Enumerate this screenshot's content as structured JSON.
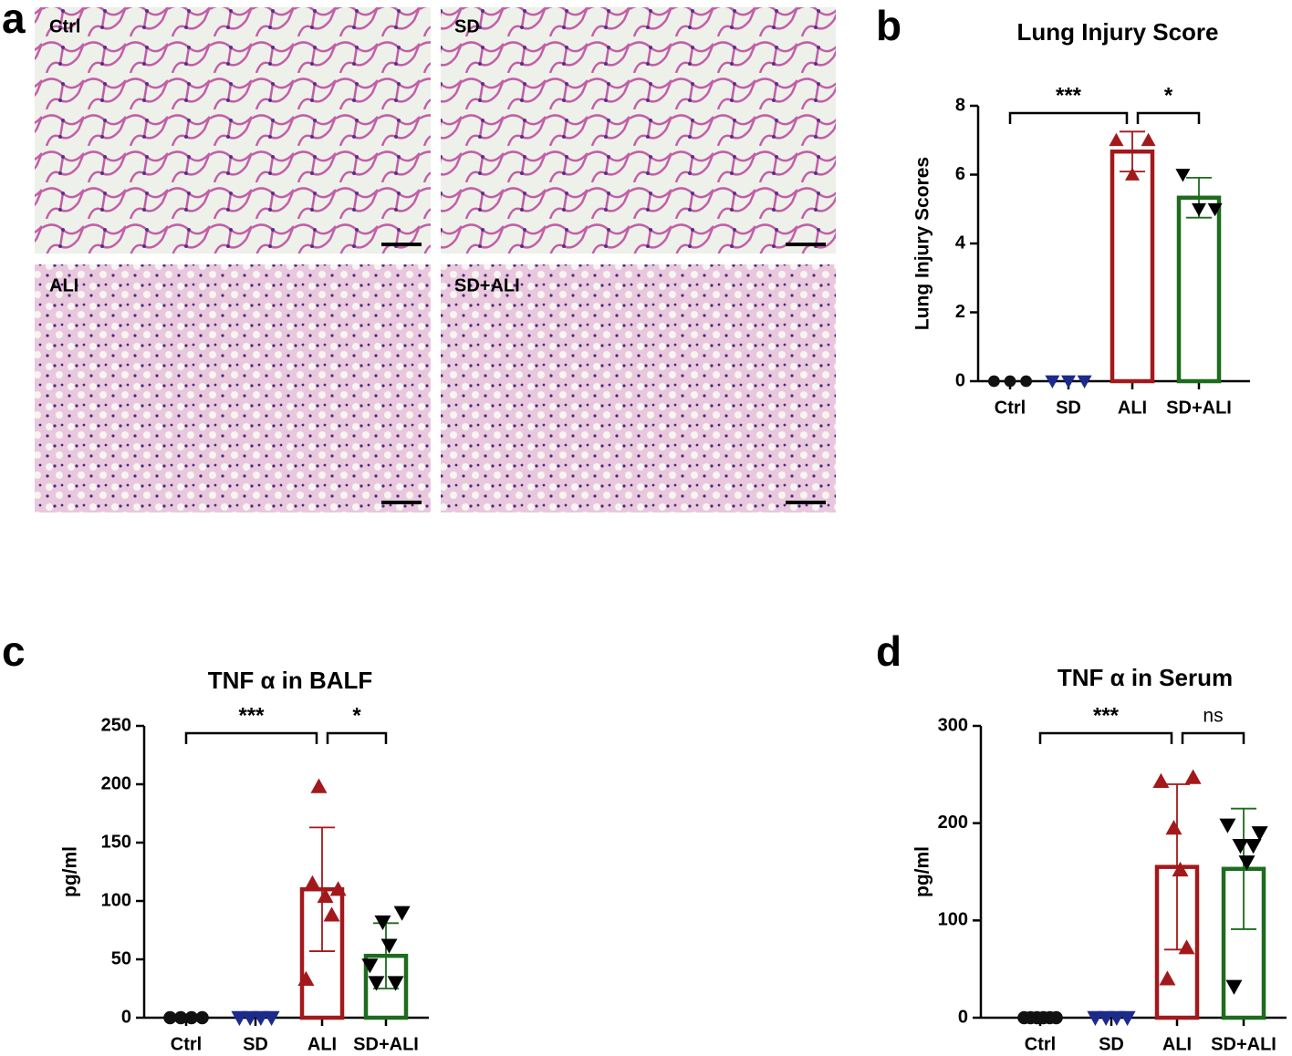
{
  "images": {
    "letter": "a",
    "labels": [
      "Ctrl",
      "SD",
      "ALI",
      "SD+ALI"
    ]
  },
  "chart_data": [
    {
      "type": "bar",
      "letter": "b",
      "title": "Lung Injury Score",
      "ylabel": "Lung Injury Scores",
      "categories": [
        "Ctrl",
        "SD",
        "ALI",
        "SD+ALI"
      ],
      "values": [
        0,
        0,
        6.67,
        5.33
      ],
      "errors": [
        null,
        null,
        0.58,
        0.58
      ],
      "colors": [
        "#111111",
        "#1c2a8c",
        "#a3191b",
        "#1e6b1e"
      ],
      "markers": [
        "circle",
        "triangle-down",
        "triangle-up",
        "triangle-down"
      ],
      "points": [
        [
          0,
          0,
          0
        ],
        [
          0,
          0,
          0
        ],
        [
          7,
          6,
          7
        ],
        [
          6,
          5,
          5
        ]
      ],
      "ylim": [
        0,
        8
      ],
      "yticks": [
        0,
        2,
        4,
        6,
        8
      ],
      "annotations": [
        {
          "from": 0,
          "to": 2,
          "text": "***"
        },
        {
          "from": 2,
          "to": 3,
          "text": "*"
        }
      ]
    },
    {
      "type": "bar",
      "letter": "c",
      "title": "TNF α in BALF",
      "ylabel": "pg/ml",
      "categories": [
        "Ctrl",
        "SD",
        "ALI",
        "SD+ALI"
      ],
      "values": [
        0,
        0,
        110,
        53
      ],
      "errors": [
        null,
        null,
        53,
        28
      ],
      "colors": [
        "#111111",
        "#1c2a8c",
        "#a3191b",
        "#1e6b1e"
      ],
      "markers": [
        "circle",
        "triangle-down",
        "triangle-up",
        "triangle-down"
      ],
      "points": [
        [
          0,
          0,
          0,
          0
        ],
        [
          0,
          0,
          0,
          0
        ],
        [
          33,
          115,
          198,
          104,
          88,
          110
        ],
        [
          45,
          30,
          82,
          62,
          30,
          90
        ]
      ],
      "ylim": [
        0,
        250
      ],
      "yticks": [
        0,
        50,
        100,
        150,
        200,
        250
      ],
      "annotations": [
        {
          "from": 0,
          "to": 2,
          "text": "***"
        },
        {
          "from": 2,
          "to": 3,
          "text": "*"
        }
      ]
    },
    {
      "type": "bar",
      "letter": "d",
      "title": "TNF α in Serum",
      "ylabel": "pg/ml",
      "categories": [
        "Ctrl",
        "SD",
        "ALI",
        "SD+ALI"
      ],
      "values": [
        0,
        0,
        155,
        153
      ],
      "errors": [
        null,
        null,
        85,
        62
      ],
      "colors": [
        "#111111",
        "#1c2a8c",
        "#a3191b",
        "#1e6b1e"
      ],
      "markers": [
        "circle",
        "triangle-down",
        "triangle-up",
        "triangle-down"
      ],
      "points": [
        [
          0,
          0,
          0,
          0,
          0,
          0
        ],
        [
          0,
          0,
          0,
          0
        ],
        [
          243,
          40,
          195,
          152,
          72,
          247
        ],
        [
          198,
          32,
          177,
          160,
          177,
          190
        ]
      ],
      "ylim": [
        0,
        300
      ],
      "yticks": [
        0,
        100,
        200,
        300
      ],
      "annotations": [
        {
          "from": 0,
          "to": 2,
          "text": "***"
        },
        {
          "from": 2,
          "to": 3,
          "text": "ns"
        }
      ]
    }
  ]
}
